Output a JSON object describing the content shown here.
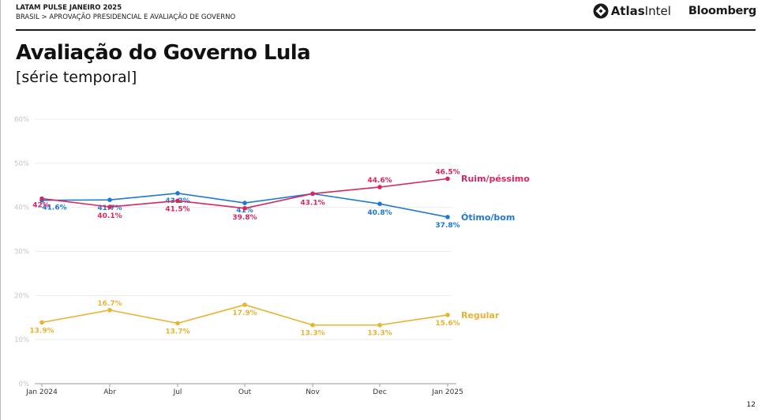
{
  "header": {
    "line1": "LATAM PULSE JANEIRO 2025",
    "line2": "BRASIL > APROVAÇÃO PRESIDENCIAL E AVALIAÇÃO DE GOVERNO"
  },
  "logos": {
    "atlas_bold": "Atlas",
    "atlas_light": "Intel",
    "bloomberg": "Bloomberg"
  },
  "title": "Avaliação do Governo Lula",
  "subtitle": "[série temporal]",
  "page_number": "12",
  "colors": {
    "ruim": "#d5295e",
    "otimo": "#1e78d2",
    "regular": "#e8b233",
    "grid": "#ebebeb",
    "axis": "#9a9a9a"
  },
  "chart_data": {
    "type": "line",
    "x": [
      "Jan 2024",
      "Abr",
      "Jul",
      "Out",
      "Nov",
      "Dec",
      "Jan 2025"
    ],
    "ylim": [
      0,
      60
    ],
    "yticks": [
      "0%",
      "10%",
      "20%",
      "30%",
      "40%",
      "50%",
      "60%"
    ],
    "grid": true,
    "series": [
      {
        "name": "Ruim/péssimo",
        "color": "#d5295e",
        "values": [
          42,
          40.1,
          41.5,
          39.8,
          43.1,
          44.6,
          46.5
        ],
        "labels": [
          "42%",
          "40.1%",
          "41.5%",
          "39.8%",
          "43.1%",
          "44.6%",
          "46.5%"
        ]
      },
      {
        "name": "Ótimo/bom",
        "color": "#1e78d2",
        "values": [
          41.6,
          41.7,
          43.2,
          41,
          43.1,
          40.8,
          37.8
        ],
        "labels": [
          "41.6%",
          "41.7%",
          "43.2%",
          "41%",
          "",
          "40.8%",
          "37.8%"
        ]
      },
      {
        "name": "Regular",
        "color": "#e8b233",
        "values": [
          13.9,
          16.7,
          13.7,
          17.9,
          13.3,
          13.3,
          15.6
        ],
        "labels": [
          "13.9%",
          "16.7%",
          "13.7%",
          "17.9%",
          "13.3%",
          "13.3%",
          "15.6%"
        ]
      }
    ]
  }
}
